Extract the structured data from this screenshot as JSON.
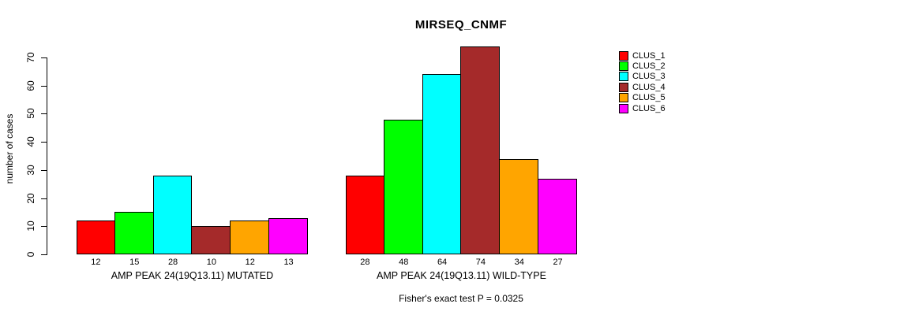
{
  "chart_data": {
    "type": "bar",
    "title": "MIRSEQ_CNMF",
    "ylabel": "number of cases",
    "xlabel": "",
    "ylim": [
      0,
      70
    ],
    "y_ticks": [
      0,
      10,
      20,
      30,
      40,
      50,
      60,
      70
    ],
    "grid": false,
    "legend_position": "right",
    "clusters": [
      "CLUS_1",
      "CLUS_2",
      "CLUS_3",
      "CLUS_4",
      "CLUS_5",
      "CLUS_6"
    ],
    "cluster_colors": [
      "#FF0000",
      "#00FF00",
      "#00FFFF",
      "#A52A2A",
      "#FFA500",
      "#FF00FF"
    ],
    "groups": [
      {
        "label": "AMP PEAK 24(19Q13.11) MUTATED",
        "values": [
          12,
          15,
          28,
          10,
          12,
          13
        ]
      },
      {
        "label": "AMP PEAK 24(19Q13.11) WILD-TYPE",
        "values": [
          28,
          48,
          64,
          74,
          34,
          27
        ]
      }
    ],
    "annotation": "Fisher's exact test P = 0.0325"
  },
  "legend": {
    "items": [
      {
        "label": "CLUS_1",
        "color": "#FF0000"
      },
      {
        "label": "CLUS_2",
        "color": "#00FF00"
      },
      {
        "label": "CLUS_3",
        "color": "#00FFFF"
      },
      {
        "label": "CLUS_4",
        "color": "#A52A2A"
      },
      {
        "label": "CLUS_5",
        "color": "#FFA500"
      },
      {
        "label": "CLUS_6",
        "color": "#FF00FF"
      }
    ]
  }
}
